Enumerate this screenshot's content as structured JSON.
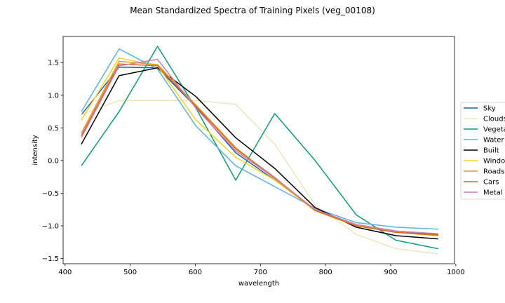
{
  "chart_data": {
    "type": "line",
    "title": "Mean Standardized Spectra of Training Pixels (veg_00108)",
    "xlabel": "wavelength",
    "ylabel": "intensity",
    "xlim": [
      397,
      998
    ],
    "ylim": [
      -1.58,
      1.9
    ],
    "xticks": [
      400,
      500,
      600,
      700,
      800,
      900,
      1000
    ],
    "yticks": [
      -1.5,
      -1.0,
      -0.5,
      0.0,
      0.5,
      1.0,
      1.5
    ],
    "xtick_labels": [
      "400",
      "500",
      "600",
      "700",
      "800",
      "900",
      "1000"
    ],
    "ytick_labels": [
      "−1.5",
      "−1.0",
      "−0.5",
      "0.0",
      "0.5",
      "1.0",
      "1.5"
    ],
    "grid": false,
    "legend_position": "right, outside plot area",
    "x": [
      425,
      483,
      542,
      601,
      662,
      722,
      784,
      847,
      908,
      973
    ],
    "series": [
      {
        "name": "Sky",
        "color": "#1f5fa8",
        "values": [
          0.7,
          1.43,
          1.42,
          0.82,
          0.12,
          -0.3,
          -0.75,
          -0.98,
          -1.08,
          -1.13
        ]
      },
      {
        "name": "Clouds",
        "color": "#ede6c0",
        "values": [
          0.7,
          0.92,
          0.92,
          0.92,
          0.86,
          0.25,
          -0.68,
          -1.13,
          -1.35,
          -1.43
        ]
      },
      {
        "name": "Vegetation",
        "color": "#0a9e6e",
        "values": [
          -0.08,
          0.75,
          1.75,
          0.8,
          -0.3,
          0.72,
          0.0,
          -0.83,
          -1.22,
          -1.35
        ]
      },
      {
        "name": "Water",
        "color": "#56b4e0",
        "values": [
          0.75,
          1.71,
          1.4,
          0.53,
          -0.08,
          -0.4,
          -0.73,
          -0.95,
          -1.02,
          -1.05
        ]
      },
      {
        "name": "Built",
        "color": "#000000",
        "values": [
          0.25,
          1.3,
          1.42,
          0.98,
          0.35,
          -0.12,
          -0.72,
          -1.02,
          -1.15,
          -1.2
        ]
      },
      {
        "name": "Windows",
        "color": "#f6d31e",
        "values": [
          0.62,
          1.57,
          1.45,
          0.62,
          0.05,
          -0.3,
          -0.76,
          -0.99,
          -1.1,
          -1.15
        ]
      },
      {
        "name": "Roads",
        "color": "#e0a020",
        "values": [
          0.42,
          1.52,
          1.47,
          0.85,
          0.2,
          -0.28,
          -0.77,
          -1.0,
          -1.1,
          -1.15
        ]
      },
      {
        "name": "Cars",
        "color": "#e26418",
        "values": [
          0.38,
          1.48,
          1.45,
          0.83,
          0.18,
          -0.26,
          -0.76,
          -1.0,
          -1.1,
          -1.14
        ]
      },
      {
        "name": "Metal",
        "color": "#c97fb8",
        "values": [
          0.35,
          1.45,
          1.55,
          0.8,
          0.15,
          -0.27,
          -0.75,
          -0.98,
          -1.08,
          -1.12
        ]
      }
    ]
  }
}
